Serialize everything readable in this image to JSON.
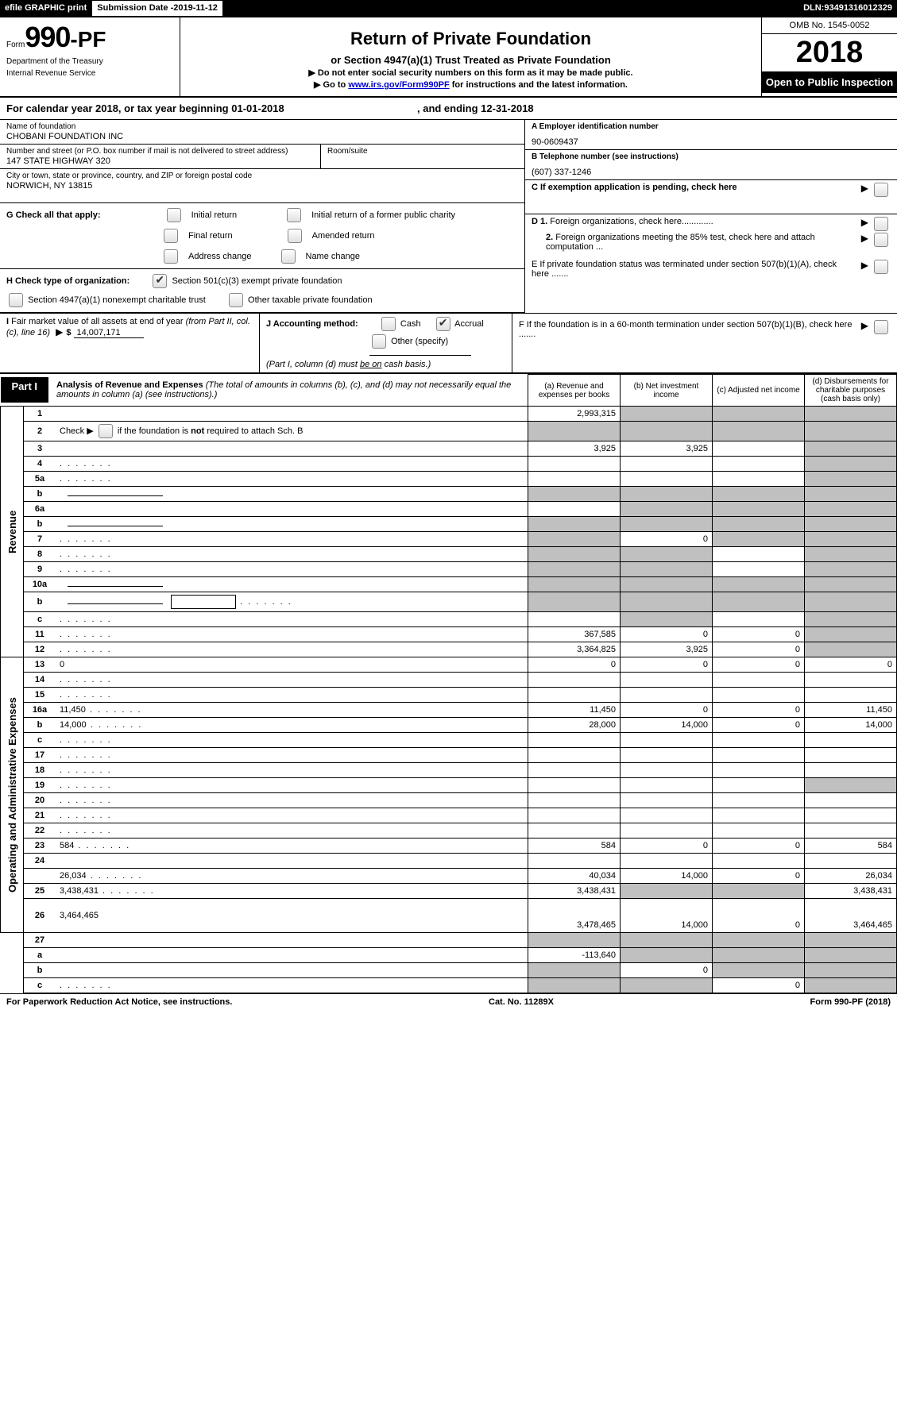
{
  "topbar": {
    "efile": "efile GRAPHIC print",
    "submission_label": "Submission Date - ",
    "submission_date": "2019-11-12",
    "dln_label": "DLN: ",
    "dln": "93491316012329"
  },
  "header": {
    "form_prefix": "Form",
    "form_num": "990-PF",
    "dept1": "Department of the Treasury",
    "dept2": "Internal Revenue Service",
    "title": "Return of Private Foundation",
    "subtitle": "or Section 4947(a)(1) Trust Treated as Private Foundation",
    "note1": "▶ Do not enter social security numbers on this form as it may be made public.",
    "note2_pre": "▶ Go to ",
    "note2_link": "www.irs.gov/Form990PF",
    "note2_post": " for instructions and the latest information.",
    "omb": "OMB No. 1545-0052",
    "year": "2018",
    "open": "Open to Public Inspection"
  },
  "calyear": {
    "text_pre": "For calendar year 2018, or tax year beginning ",
    "begin": "01-01-2018",
    "text_mid": ", and ending ",
    "end": "12-31-2018"
  },
  "entity": {
    "name_label": "Name of foundation",
    "name": "CHOBANI FOUNDATION INC",
    "addr_label": "Number and street (or P.O. box number if mail is not delivered to street address)",
    "addr": "147 STATE HIGHWAY 320",
    "room_label": "Room/suite",
    "city_label": "City or town, state or province, country, and ZIP or foreign postal code",
    "city": "NORWICH, NY  13815",
    "ein_label": "A Employer identification number",
    "ein": "90-0609437",
    "tel_label": "B Telephone number (see instructions)",
    "tel": "(607) 337-1246",
    "c_label": "C  If exemption application is pending, check here",
    "d1": "D 1. Foreign organizations, check here.............",
    "d2": "2. Foreign organizations meeting the 85% test, check here and attach computation ...",
    "e": "E  If private foundation status was terminated under section 507(b)(1)(A), check here .......",
    "f": "F  If the foundation is in a 60-month termination under section 507(b)(1)(B), check here ......."
  },
  "g": {
    "label": "G Check all that apply:",
    "opt1": "Initial return",
    "opt2": "Initial return of a former public charity",
    "opt3": "Final return",
    "opt4": "Amended return",
    "opt5": "Address change",
    "opt6": "Name change"
  },
  "h": {
    "label": "H Check type of organization:",
    "opt1": "Section 501(c)(3) exempt private foundation",
    "opt2": "Section 4947(a)(1) nonexempt charitable trust",
    "opt3": "Other taxable private foundation"
  },
  "i": {
    "label": "I Fair market value of all assets at end of year (from Part II, col. (c), line 16)",
    "value": "14,007,171"
  },
  "j": {
    "label": "J Accounting method:",
    "cash": "Cash",
    "accrual": "Accrual",
    "other": "Other (specify)",
    "note": "(Part I, column (d) must be on cash basis.)"
  },
  "part1": {
    "label": "Part I",
    "title": "Analysis of Revenue and Expenses",
    "title_note": " (The total of amounts in columns (b), (c), and (d) may not necessarily equal the amounts in column (a) (see instructions).)",
    "col_a": "(a)   Revenue and expenses per books",
    "col_b": "(b)   Net investment income",
    "col_c": "(c)   Adjusted net income",
    "col_d": "(d)   Disbursements for charitable purposes (cash basis only)"
  },
  "sidebar": {
    "revenue": "Revenue",
    "expenses": "Operating and Administrative Expenses"
  },
  "rows": [
    {
      "n": "1",
      "d": "",
      "a": "2,993,315",
      "b": "",
      "c": "",
      "grey_bcd": true
    },
    {
      "n": "2",
      "d": "",
      "a": "",
      "b": "",
      "c": "",
      "grey_all": true,
      "has_checkbox": true
    },
    {
      "n": "3",
      "d": "",
      "a": "3,925",
      "b": "3,925",
      "c": "",
      "grey_d": true
    },
    {
      "n": "4",
      "d": "",
      "dots": true,
      "a": "",
      "b": "",
      "c": "",
      "grey_d": true
    },
    {
      "n": "5a",
      "d": "",
      "dots": true,
      "a": "",
      "b": "",
      "c": "",
      "grey_d": true
    },
    {
      "n": "b",
      "d": "",
      "a": "",
      "b": "",
      "c": "",
      "grey_all": true,
      "inline_blank": true
    },
    {
      "n": "6a",
      "d": "",
      "a": "",
      "b": "",
      "c": "",
      "grey_bcd": true
    },
    {
      "n": "b",
      "d": "",
      "a": "",
      "b": "",
      "c": "",
      "grey_all": true,
      "inline_blank": true
    },
    {
      "n": "7",
      "d": "",
      "dots": true,
      "a": "",
      "b": "0",
      "c": "",
      "grey_a": true,
      "grey_cd": true
    },
    {
      "n": "8",
      "d": "",
      "dots": true,
      "a": "",
      "b": "",
      "c": "",
      "grey_ab": true,
      "grey_d": true
    },
    {
      "n": "9",
      "d": "",
      "dots": true,
      "a": "",
      "b": "",
      "c": "",
      "grey_ab": true,
      "grey_d": true
    },
    {
      "n": "10a",
      "d": "",
      "a": "",
      "b": "",
      "c": "",
      "grey_all": true,
      "inline_blank": true
    },
    {
      "n": "b",
      "d": "",
      "dots": true,
      "a": "",
      "b": "",
      "c": "",
      "grey_all": true,
      "inline_blank": true,
      "double_blank": true
    },
    {
      "n": "c",
      "d": "",
      "dots": true,
      "a": "",
      "b": "",
      "c": "",
      "grey_b": true,
      "grey_d": true
    },
    {
      "n": "11",
      "d": "",
      "dots": true,
      "a": "367,585",
      "b": "0",
      "c": "0",
      "grey_d": true
    },
    {
      "n": "12",
      "d": "",
      "dots": true,
      "a": "3,364,825",
      "b": "3,925",
      "c": "0",
      "grey_d": true
    }
  ],
  "exp_rows": [
    {
      "n": "13",
      "d": "0",
      "a": "0",
      "b": "0",
      "c": "0"
    },
    {
      "n": "14",
      "d": "",
      "dots": true,
      "a": "",
      "b": "",
      "c": ""
    },
    {
      "n": "15",
      "d": "",
      "dots": true,
      "a": "",
      "b": "",
      "c": ""
    },
    {
      "n": "16a",
      "d": "11,450",
      "dots": true,
      "a": "11,450",
      "b": "0",
      "c": "0"
    },
    {
      "n": "b",
      "d": "14,000",
      "dots": true,
      "a": "28,000",
      "b": "14,000",
      "c": "0"
    },
    {
      "n": "c",
      "d": "",
      "dots": true,
      "a": "",
      "b": "",
      "c": ""
    },
    {
      "n": "17",
      "d": "",
      "dots": true,
      "a": "",
      "b": "",
      "c": ""
    },
    {
      "n": "18",
      "d": "",
      "dots": true,
      "a": "",
      "b": "",
      "c": ""
    },
    {
      "n": "19",
      "d": "",
      "dots": true,
      "a": "",
      "b": "",
      "c": "",
      "grey_d": true
    },
    {
      "n": "20",
      "d": "",
      "dots": true,
      "a": "",
      "b": "",
      "c": ""
    },
    {
      "n": "21",
      "d": "",
      "dots": true,
      "a": "",
      "b": "",
      "c": ""
    },
    {
      "n": "22",
      "d": "",
      "dots": true,
      "a": "",
      "b": "",
      "c": ""
    },
    {
      "n": "23",
      "d": "584",
      "dots": true,
      "a": "584",
      "b": "0",
      "c": "0"
    },
    {
      "n": "24",
      "d": "",
      "a": "",
      "b": "",
      "c": "",
      "no_cells": true
    },
    {
      "n": "",
      "d": "26,034",
      "dots": true,
      "a": "40,034",
      "b": "14,000",
      "c": "0"
    },
    {
      "n": "25",
      "d": "3,438,431",
      "dots": true,
      "a": "3,438,431",
      "b": "",
      "c": "",
      "grey_bc": true
    },
    {
      "n": "26",
      "d": "3,464,465",
      "a": "3,478,465",
      "b": "14,000",
      "c": "0",
      "tall": true
    }
  ],
  "bottom_rows": [
    {
      "n": "27",
      "d": "",
      "a": "",
      "b": "",
      "c": "",
      "grey_all": true
    },
    {
      "n": "a",
      "d": "",
      "a": "-113,640",
      "b": "",
      "c": "",
      "grey_bcd": true
    },
    {
      "n": "b",
      "d": "",
      "a": "",
      "b": "0",
      "c": "",
      "grey_a": true,
      "grey_cd": true
    },
    {
      "n": "c",
      "d": "",
      "dots": true,
      "a": "",
      "b": "",
      "c": "0",
      "grey_ab": true,
      "grey_d": true
    }
  ],
  "footer": {
    "left": "For Paperwork Reduction Act Notice, see instructions.",
    "mid": "Cat. No. 11289X",
    "right": "Form 990-PF (2018)"
  }
}
